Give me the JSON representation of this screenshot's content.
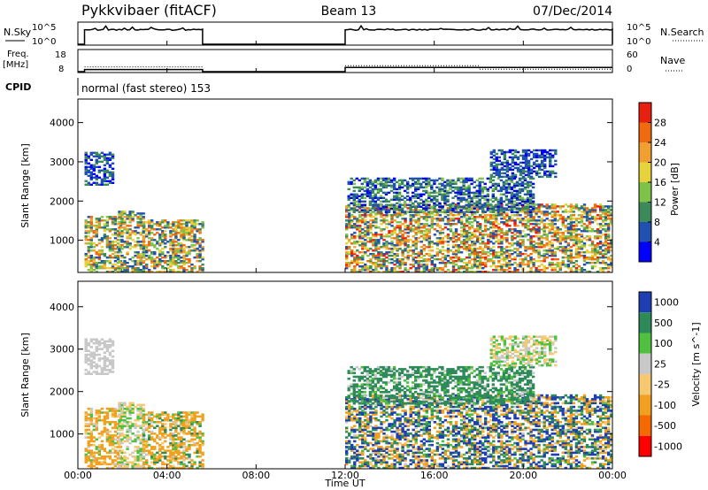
{
  "header": {
    "title": "Pykkvibaer (fitACF)",
    "beam": "Beam 13",
    "date": "07/Dec/2014"
  },
  "sky_panel": {
    "left_label": "N.Sky",
    "right_label": "N.Search",
    "left_ticks": [
      "10^5",
      "10^0"
    ],
    "right_ticks": [
      "10^5",
      "10^0"
    ]
  },
  "freq_panel": {
    "left_label_1": "Freq.",
    "left_label_2": "[MHz]",
    "right_label": "Nave",
    "left_ticks": [
      "18",
      "8"
    ],
    "right_ticks": [
      "60",
      "0"
    ]
  },
  "cpid": {
    "label": "CPID",
    "text": "normal (fast stereo) 153"
  },
  "colors": {
    "power_scale": [
      "#0000ff",
      "#2050b0",
      "#3c8a5a",
      "#7fc24a",
      "#e6d23a",
      "#f0a030",
      "#f06a10",
      "#e82010"
    ],
    "velocity_scale": [
      "#ff0000",
      "#f46a00",
      "#f2a020",
      "#f6c870",
      "#c8c8c8",
      "#50c040",
      "#2f8a5a",
      "#1e3fb4"
    ],
    "ground_scatter": "#c0c0c0"
  },
  "chart_data": [
    {
      "type": "heatmap",
      "name": "power",
      "ylabel": "Slant Range [km]",
      "xlabel": "Time UT",
      "x_tick_labels": [
        "00:00",
        "04:00",
        "08:00",
        "12:00",
        "16:00",
        "20:00",
        "00:00"
      ],
      "xlim_hours": [
        0,
        24
      ],
      "ylim_km": [
        180,
        4600
      ],
      "y_ticks": [
        1000,
        2000,
        3000,
        4000
      ],
      "colorbar_label": "Power [dB]",
      "colorbar_ticks": [
        "4",
        "8",
        "12",
        "16",
        "20",
        "24",
        "28"
      ],
      "scatter_regions": [
        {
          "t0": 0.3,
          "t1": 1.9,
          "r0": 180,
          "r1": 1600,
          "min": 4,
          "max": 28
        },
        {
          "t0": 0.3,
          "t1": 1.6,
          "r0": 2400,
          "r1": 3250,
          "min": 2,
          "max": 10
        },
        {
          "t0": 1.8,
          "t1": 3.0,
          "r0": 180,
          "r1": 1750,
          "min": 4,
          "max": 26
        },
        {
          "t0": 2.9,
          "t1": 5.6,
          "r0": 180,
          "r1": 1500,
          "min": 4,
          "max": 28
        },
        {
          "t0": 12.0,
          "t1": 24.0,
          "r0": 180,
          "r1": 1900,
          "min": 4,
          "max": 30
        },
        {
          "t0": 12.1,
          "t1": 20.5,
          "r0": 1700,
          "r1": 2600,
          "min": 2,
          "max": 14
        },
        {
          "t0": 18.5,
          "t1": 21.5,
          "r0": 2600,
          "r1": 3300,
          "min": 2,
          "max": 10
        }
      ]
    },
    {
      "type": "heatmap",
      "name": "velocity",
      "ylabel": "Slant Range [km]",
      "xlabel": "Time UT",
      "x_tick_labels": [
        "00:00",
        "04:00",
        "08:00",
        "12:00",
        "16:00",
        "20:00",
        "00:00"
      ],
      "xlim_hours": [
        0,
        24
      ],
      "ylim_km": [
        180,
        4600
      ],
      "y_ticks": [
        1000,
        2000,
        3000,
        4000
      ],
      "colorbar_label": "Velocity [m s^-1]",
      "colorbar_ticks": [
        "1000",
        "500",
        "100",
        "25",
        "-25",
        "-100",
        "-500",
        "-1000"
      ],
      "scatter_regions": [
        {
          "t0": 0.3,
          "t1": 1.9,
          "r0": 180,
          "r1": 1600,
          "min": -500,
          "max": 100
        },
        {
          "t0": 0.3,
          "t1": 1.6,
          "r0": 2400,
          "r1": 3250,
          "min": -25,
          "max": 25
        },
        {
          "t0": 1.8,
          "t1": 3.0,
          "r0": 180,
          "r1": 1750,
          "min": -100,
          "max": 100
        },
        {
          "t0": 2.9,
          "t1": 5.6,
          "r0": 180,
          "r1": 1500,
          "min": -500,
          "max": 200
        },
        {
          "t0": 12.0,
          "t1": 24.0,
          "r0": 180,
          "r1": 1900,
          "min": -500,
          "max": 1000
        },
        {
          "t0": 12.1,
          "t1": 20.5,
          "r0": 1700,
          "r1": 2600,
          "min": -25,
          "max": 500
        },
        {
          "t0": 18.5,
          "t1": 21.5,
          "r0": 2600,
          "r1": 3300,
          "min": -100,
          "max": 100
        }
      ]
    }
  ],
  "coverage": {
    "data_intervals_hours": [
      [
        0.3,
        5.6
      ],
      [
        12.0,
        24.0
      ]
    ],
    "nsky_level": "10^5",
    "freq_mhz_first": 9,
    "freq_mhz_second": 10,
    "nave_step_hour": 18.0
  }
}
